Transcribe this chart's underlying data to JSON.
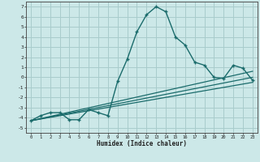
{
  "xlabel": "Humidex (Indice chaleur)",
  "bg_color": "#cce8e8",
  "line_color": "#1a6b6b",
  "grid_color": "#a8cccc",
  "xlim": [
    -0.5,
    23.5
  ],
  "ylim": [
    -5.5,
    7.5
  ],
  "xticks": [
    0,
    1,
    2,
    3,
    4,
    5,
    6,
    7,
    8,
    9,
    10,
    11,
    12,
    13,
    14,
    15,
    16,
    17,
    18,
    19,
    20,
    21,
    22,
    23
  ],
  "yticks": [
    -5,
    -4,
    -3,
    -2,
    -1,
    0,
    1,
    2,
    3,
    4,
    5,
    6,
    7
  ],
  "main_line_x": [
    0,
    1,
    2,
    3,
    4,
    5,
    6,
    7,
    8,
    9,
    10,
    11,
    12,
    13,
    14,
    15,
    16,
    17,
    18,
    19,
    20,
    21,
    22,
    23
  ],
  "main_line_y": [
    -4.3,
    -3.8,
    -3.5,
    -3.5,
    -4.2,
    -4.2,
    -3.2,
    -3.5,
    -3.8,
    -0.4,
    1.8,
    4.5,
    6.2,
    7.0,
    6.5,
    4.0,
    3.2,
    1.5,
    1.2,
    0.0,
    -0.1,
    1.2,
    0.9,
    -0.3
  ],
  "diag_line1_x": [
    0,
    23
  ],
  "diag_line1_y": [
    -4.3,
    -0.5
  ],
  "diag_line2_x": [
    0,
    23
  ],
  "diag_line2_y": [
    -4.3,
    0.0
  ],
  "diag_line3_x": [
    0,
    23
  ],
  "diag_line3_y": [
    -4.3,
    0.6
  ]
}
